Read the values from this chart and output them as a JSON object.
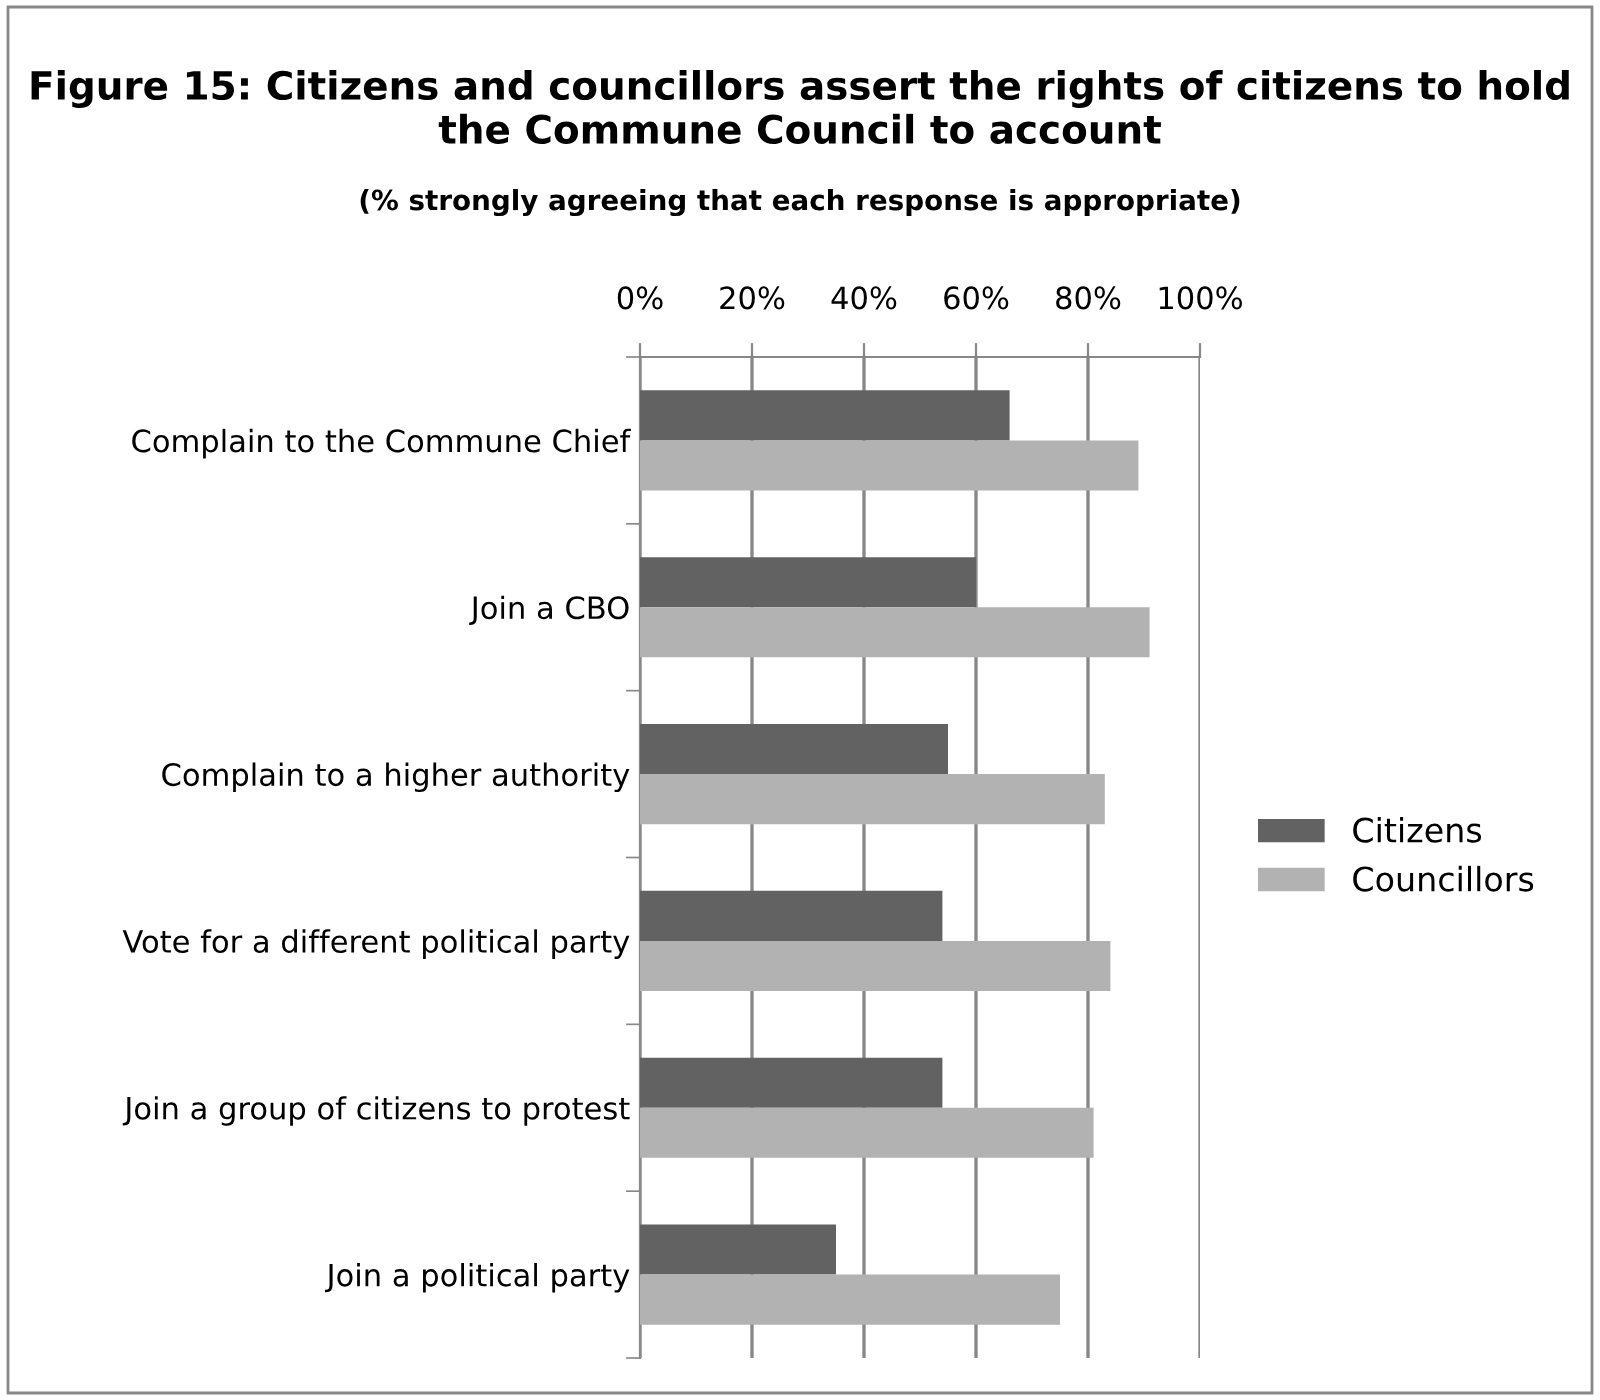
{
  "chart_data": {
    "type": "bar",
    "orientation": "horizontal",
    "title": "Figure 15: Citizens and councillors assert the rights of citizens to hold the Commune Council to account",
    "subtitle": "(% strongly agreeing that each response is appropriate)",
    "categories": [
      "Complain to the Commune Chief",
      "Join a CBO",
      "Complain to a higher authority",
      "Vote for a different political party",
      "Join a group of citizens to protest",
      "Join a political party"
    ],
    "series": [
      {
        "name": "Citizens",
        "color": "#626262",
        "values": [
          66,
          60,
          55,
          54,
          54,
          35
        ]
      },
      {
        "name": "Councillors",
        "color": "#b2b2b2",
        "values": [
          89,
          91,
          83,
          84,
          81,
          75
        ]
      }
    ],
    "xlim": [
      0,
      100
    ],
    "xticks": [
      {
        "value": 0,
        "label": "0%"
      },
      {
        "value": 20,
        "label": "20%"
      },
      {
        "value": 40,
        "label": "40%"
      },
      {
        "value": 60,
        "label": "60%"
      },
      {
        "value": 80,
        "label": "80%"
      },
      {
        "value": 100,
        "label": "100%"
      }
    ],
    "grid": "x",
    "legend": "right"
  }
}
